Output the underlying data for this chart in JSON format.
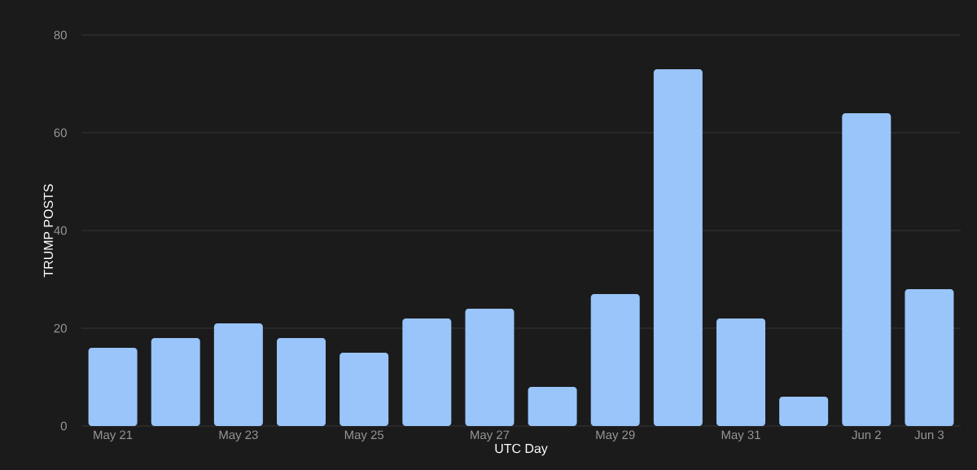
{
  "chart_data": {
    "type": "bar",
    "xlabel": "UTC Day",
    "ylabel": "TRUMP POSTS",
    "categories": [
      "May 21",
      null,
      "May 23",
      null,
      "May 25",
      null,
      "May 27",
      null,
      "May 29",
      null,
      "May 31",
      null,
      "Jun 2",
      "Jun 3"
    ],
    "values": [
      16,
      18,
      21,
      18,
      15,
      22,
      24,
      8,
      27,
      73,
      22,
      6,
      64,
      28
    ],
    "color": "#99c5fa",
    "ylim": [
      0,
      80
    ],
    "yticks": [
      0,
      20,
      40,
      60,
      80
    ],
    "grid": "y"
  }
}
